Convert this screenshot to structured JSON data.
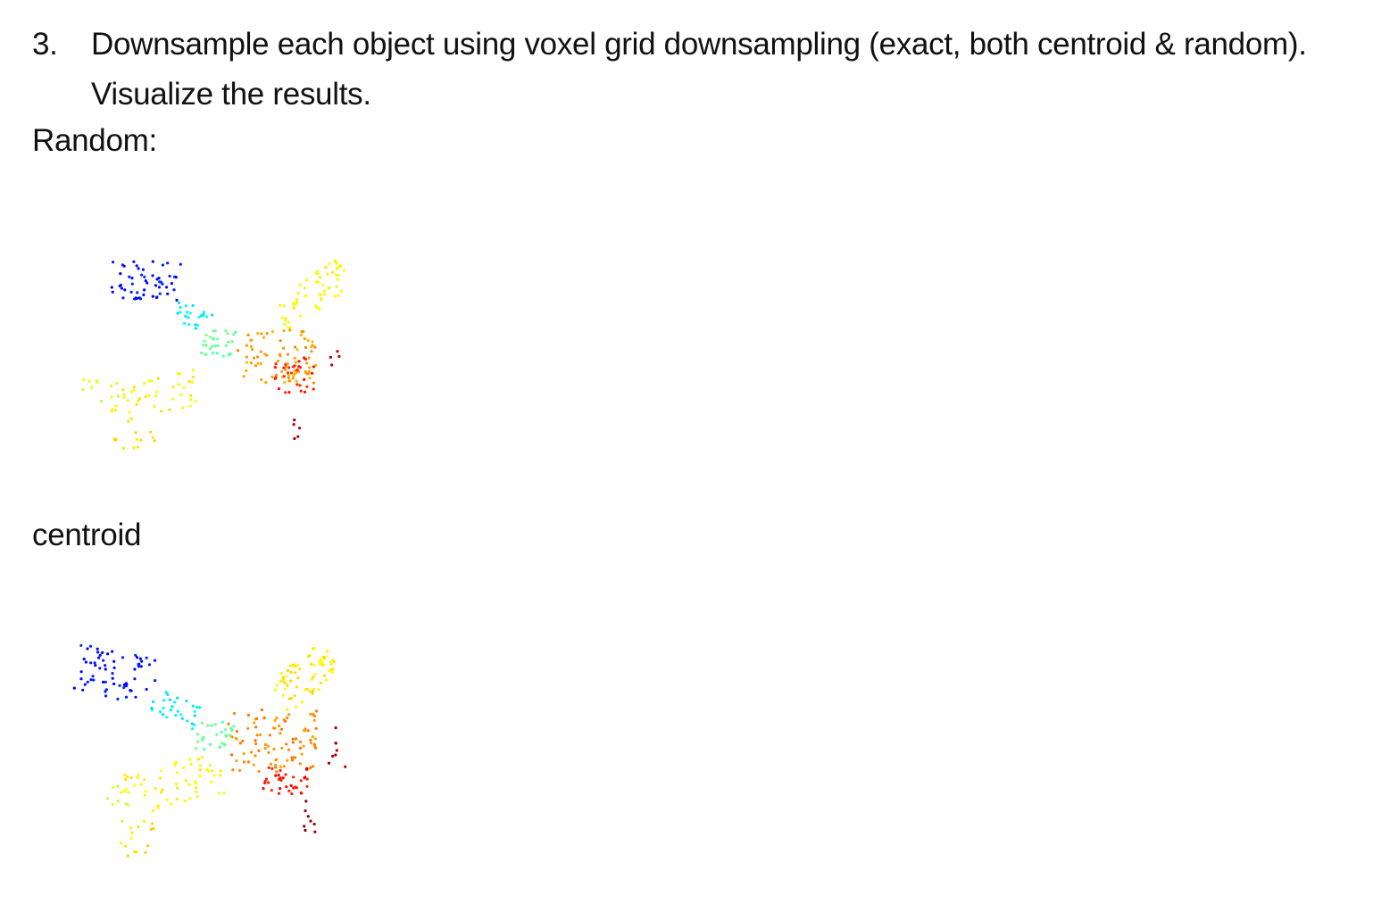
{
  "task": {
    "number": "3.",
    "text": "Downsample each object using voxel grid downsampling (exact, both centroid & random). Visualize the results."
  },
  "sections": {
    "random_label": "Random:",
    "centroid_label": "centroid"
  },
  "colormap": [
    "#00008f",
    "#0000ff",
    "#0080ff",
    "#00ffff",
    "#80ff80",
    "#ffff00",
    "#ff8000",
    "#ff0000",
    "#800000"
  ]
}
